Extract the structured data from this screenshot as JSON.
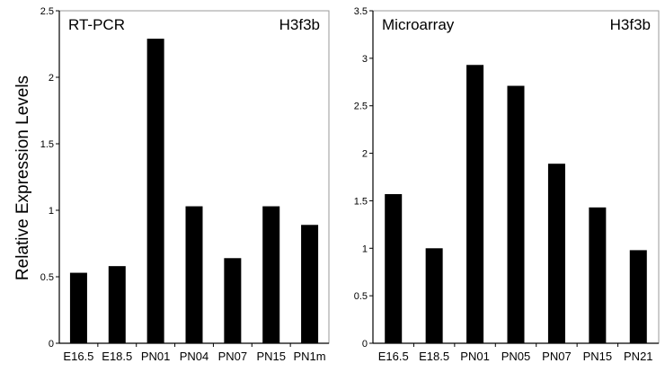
{
  "figure": {
    "ylabel": "Relative Expression Levels"
  },
  "chart_data": [
    {
      "type": "bar",
      "title": "RT-PCR",
      "subtitle": "H3f3b",
      "xlabel": "",
      "ylabel": "Relative Expression Levels",
      "categories": [
        "E16.5",
        "E18.5",
        "PN01",
        "PN04",
        "PN07",
        "PN15",
        "PN1m"
      ],
      "values": [
        0.53,
        0.58,
        2.29,
        1.03,
        0.64,
        1.03,
        0.89
      ],
      "ylim": [
        0,
        2.5
      ],
      "yticks": [
        0,
        0.5,
        1,
        1.5,
        2,
        2.5
      ],
      "ytick_labels": [
        "0",
        "0.5",
        "1",
        "1.5",
        "2",
        "2.5"
      ],
      "grid": false,
      "bar_color": "#000000"
    },
    {
      "type": "bar",
      "title": "Microarray",
      "subtitle": "H3f3b",
      "xlabel": "",
      "ylabel": "",
      "categories": [
        "E16.5",
        "E18.5",
        "PN01",
        "PN05",
        "PN07",
        "PN15",
        "PN21"
      ],
      "values": [
        1.57,
        1.0,
        2.93,
        2.71,
        1.89,
        1.43,
        0.98
      ],
      "ylim": [
        0,
        3.5
      ],
      "yticks": [
        0,
        0.5,
        1,
        1.5,
        2,
        2.5,
        3,
        3.5
      ],
      "ytick_labels": [
        "0",
        "0.5",
        "1",
        "1.5",
        "2",
        "2.5",
        "3",
        "3.5"
      ],
      "grid": false,
      "bar_color": "#000000"
    }
  ]
}
